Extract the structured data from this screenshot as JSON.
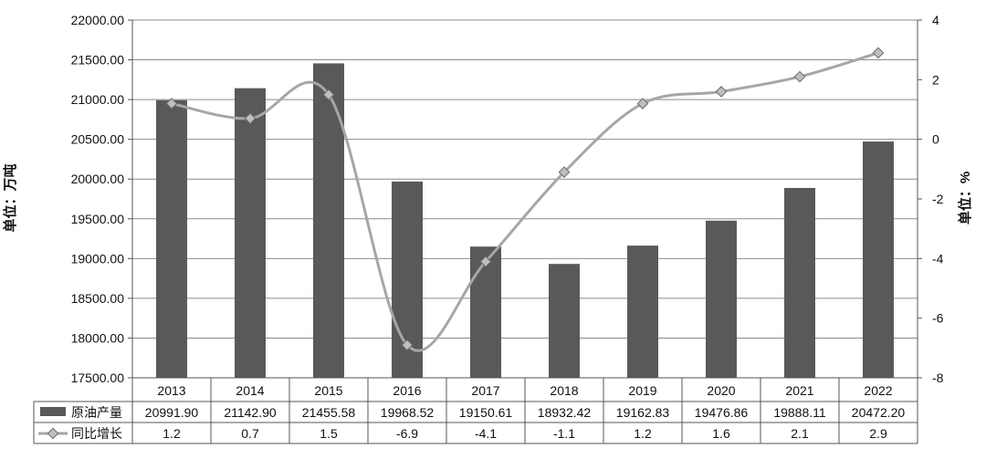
{
  "chart_data": {
    "type": "bar",
    "categories": [
      "2013",
      "2014",
      "2015",
      "2016",
      "2017",
      "2018",
      "2019",
      "2020",
      "2021",
      "2022"
    ],
    "series": [
      {
        "name": "原油产量",
        "type": "bar",
        "axis": "left",
        "values": [
          20991.9,
          21142.9,
          21455.58,
          19968.52,
          19150.61,
          18932.42,
          19162.83,
          19476.86,
          19888.11,
          20472.2
        ],
        "table_values": [
          "20991.90",
          "21142.90",
          "21455.58",
          "19968.52",
          "19150.61",
          "18932.42",
          "19162.83",
          "19476.86",
          "19888.11",
          "20472.20"
        ],
        "color": "#595959"
      },
      {
        "name": "同比增长",
        "type": "line",
        "axis": "right",
        "values": [
          1.2,
          0.7,
          1.5,
          -6.9,
          -4.1,
          -1.1,
          1.2,
          1.6,
          2.1,
          2.9
        ],
        "table_values": [
          "1.2",
          "0.7",
          "1.5",
          "-6.9",
          "-4.1",
          "-1.1",
          "1.2",
          "1.6",
          "2.1",
          "2.9"
        ],
        "color": "#a6a6a6"
      }
    ],
    "ylabel": "单位：万吨",
    "ylabel_right": "单位：%",
    "ylim": [
      17500,
      22000
    ],
    "ylim_right": [
      -8,
      4
    ],
    "yticks": [
      "17500.00",
      "18000.00",
      "18500.00",
      "19000.00",
      "19500.00",
      "20000.00",
      "20500.00",
      "21000.00",
      "21500.00",
      "22000.00"
    ],
    "yticks_right": [
      "-8",
      "-6",
      "-4",
      "-2",
      "0",
      "2",
      "4"
    ],
    "grid": true,
    "legend": "data-table"
  }
}
